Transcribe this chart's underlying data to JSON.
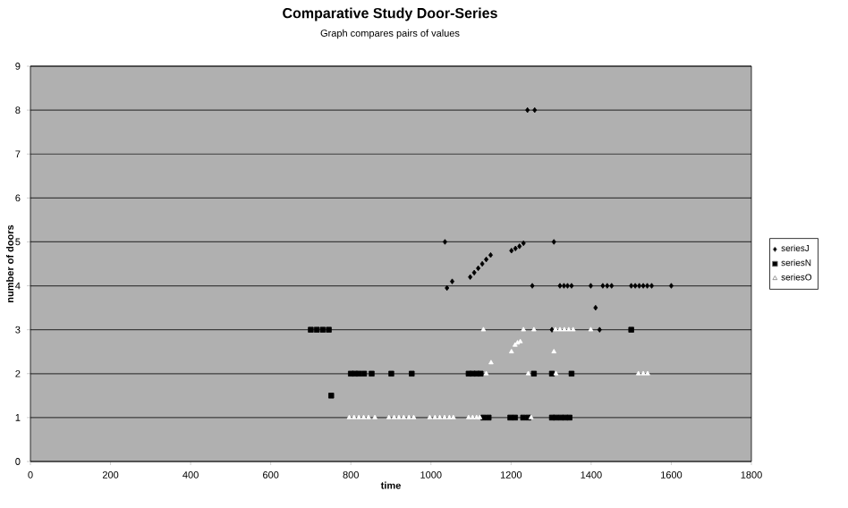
{
  "chart_data": {
    "type": "scatter",
    "title": "Comparative Study Door-Series",
    "subtitle": "Graph compares pairs of values",
    "xlabel": "time",
    "ylabel": "number of doors",
    "xlim": [
      0,
      1800
    ],
    "ylim": [
      0,
      9
    ],
    "xticks": [
      0,
      200,
      400,
      600,
      800,
      1000,
      1200,
      1400,
      1600,
      1800
    ],
    "yticks": [
      0,
      1,
      2,
      3,
      4,
      5,
      6,
      7,
      8,
      9
    ],
    "grid": "y",
    "legend": "right",
    "series": [
      {
        "name": "seriesJ",
        "color": "#000000",
        "marker": "diamond",
        "x": [
          1035,
          1040,
          1053,
          1098,
          1108,
          1118,
          1128,
          1138,
          1149,
          1201,
          1211,
          1221,
          1231,
          1307,
          1241,
          1259,
          1253,
          1322,
          1332,
          1341,
          1351,
          1399,
          1429,
          1440,
          1451,
          1500,
          1510,
          1520,
          1530,
          1540,
          1551,
          1600,
          1411,
          1302,
          1421
        ],
        "values": [
          5,
          3.95,
          4.1,
          4.2,
          4.3,
          4.4,
          4.5,
          4.6,
          4.7,
          4.8,
          4.85,
          4.9,
          4.97,
          5,
          8,
          8,
          4,
          4,
          4,
          4,
          4,
          4,
          4,
          4,
          4,
          4,
          4,
          4,
          4,
          4,
          4,
          4,
          3.5,
          3,
          3
        ]
      },
      {
        "name": "seriesN",
        "color": "#000000",
        "marker": "square",
        "x": [
          700,
          715,
          730,
          745,
          751,
          800,
          810,
          820,
          833,
          852,
          901,
          952,
          1094,
          1104,
          1114,
          1124,
          1257,
          1302,
          1351,
          1131,
          1144,
          1198,
          1210,
          1230,
          1243,
          1302,
          1312,
          1324,
          1335,
          1346,
          1500
        ],
        "values": [
          3,
          3,
          3,
          3,
          1.5,
          2,
          2,
          2,
          2,
          2,
          2,
          2,
          2,
          2,
          2,
          2,
          2,
          2,
          2,
          1,
          1,
          1,
          1,
          1,
          1,
          1,
          1,
          1,
          1,
          1,
          3
        ]
      },
      {
        "name": "seriesO",
        "color": "#ffffff",
        "marker": "triangle",
        "x": [
          796,
          808,
          820,
          832,
          844,
          860,
          895,
          908,
          920,
          932,
          945,
          957,
          997,
          1010,
          1022,
          1034,
          1046,
          1056,
          1094,
          1104,
          1114,
          1122,
          1250,
          1138,
          1243,
          1312,
          1518,
          1530,
          1541,
          1150,
          1201,
          1210,
          1216,
          1223,
          1307,
          1131,
          1231,
          1257,
          1311,
          1322,
          1333,
          1344,
          1355,
          1399
        ],
        "values": [
          1,
          1,
          1,
          1,
          1,
          1,
          1,
          1,
          1,
          1,
          1,
          1,
          1,
          1,
          1,
          1,
          1,
          1,
          1,
          1,
          1,
          1,
          1,
          2,
          2,
          2,
          2,
          2,
          2,
          2.25,
          2.5,
          2.65,
          2.7,
          2.73,
          2.5,
          3,
          3,
          3,
          3,
          3,
          3,
          3,
          3,
          3
        ]
      }
    ]
  }
}
